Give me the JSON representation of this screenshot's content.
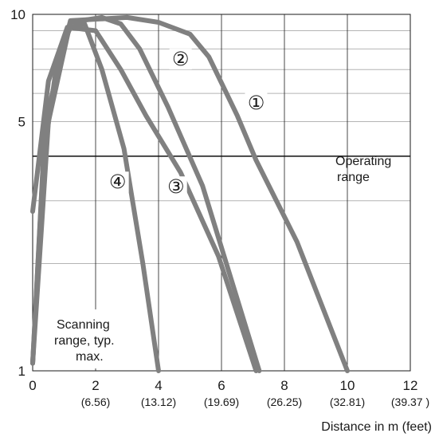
{
  "chart_data": {
    "type": "line",
    "title": "",
    "xlabel": "Distance in m (feet)",
    "ylabel": "",
    "xlim": [
      0,
      12
    ],
    "ylim": [
      1,
      10
    ],
    "y_scale": "log",
    "grid": true,
    "x_ticks": [
      {
        "value": 0,
        "label": "0",
        "sub": ""
      },
      {
        "value": 2,
        "label": "2",
        "sub": "(6.56)"
      },
      {
        "value": 4,
        "label": "4",
        "sub": "(13.12)"
      },
      {
        "value": 6,
        "label": "6",
        "sub": "(19.69)"
      },
      {
        "value": 8,
        "label": "8",
        "sub": "(26.25)"
      },
      {
        "value": 10,
        "label": "10",
        "sub": "(32.81)"
      },
      {
        "value": 12,
        "label": "12",
        "sub": "(39.37 )"
      }
    ],
    "y_tick_labels": [
      {
        "value": 1,
        "label": "1"
      },
      {
        "value": 5,
        "label": "5"
      },
      {
        "value": 10,
        "label": "10"
      }
    ],
    "y_gridlines": [
      1,
      2,
      3,
      4,
      5,
      6,
      7,
      8,
      9,
      10
    ],
    "x_gridlines": [
      0,
      2,
      4,
      6,
      8,
      10,
      12
    ],
    "operating_line": {
      "y": 4,
      "label_lines": [
        "Operating",
        "range"
      ]
    },
    "annotation": {
      "lines": [
        "Scanning",
        "range, typ.",
        "max."
      ]
    },
    "series_color": "#808080",
    "series": [
      {
        "id": "1",
        "label": "①",
        "label_at": [
          7.1,
          5.5
        ],
        "x": [
          0,
          0.4,
          1.2,
          3,
          4,
          5,
          5.6,
          6.5,
          7.1,
          8.4,
          10
        ],
        "y": [
          1.05,
          5,
          9.6,
          9.8,
          9.5,
          8.8,
          7.6,
          5.2,
          3.9,
          2.3,
          1
        ]
      },
      {
        "id": "2",
        "label": "②",
        "label_at": [
          4.7,
          7.3
        ],
        "x": [
          0,
          0.5,
          1.2,
          2.2,
          2.8,
          3.4,
          4.3,
          5.4,
          7.2
        ],
        "y": [
          1.05,
          5,
          9.5,
          9.8,
          9.4,
          8,
          5.5,
          3.3,
          1
        ]
      },
      {
        "id": "3",
        "label": "③",
        "label_at": [
          4.55,
          3.2
        ],
        "x": [
          0,
          0.5,
          1.1,
          2.0,
          2.8,
          3.6,
          4.7,
          5.9,
          7.1
        ],
        "y": [
          2.8,
          6.5,
          9.2,
          9.0,
          7.0,
          5.2,
          3.6,
          2.1,
          1
        ]
      },
      {
        "id": "4",
        "label": "④",
        "label_at": [
          2.7,
          3.3
        ],
        "x": [
          0,
          0.35,
          0.8,
          1.2,
          1.65,
          2.2,
          2.9,
          3.5,
          4
        ]
      },
      {
        "id": "4b",
        "label": "",
        "x": [
          0,
          0.35,
          0.8,
          1.2,
          1.65,
          2.2,
          2.9,
          3.5,
          4
        ],
        "y": [
          1.05,
          4.0,
          7.6,
          9.2,
          9.4,
          7.0,
          4.2,
          2.0,
          1
        ]
      }
    ]
  }
}
